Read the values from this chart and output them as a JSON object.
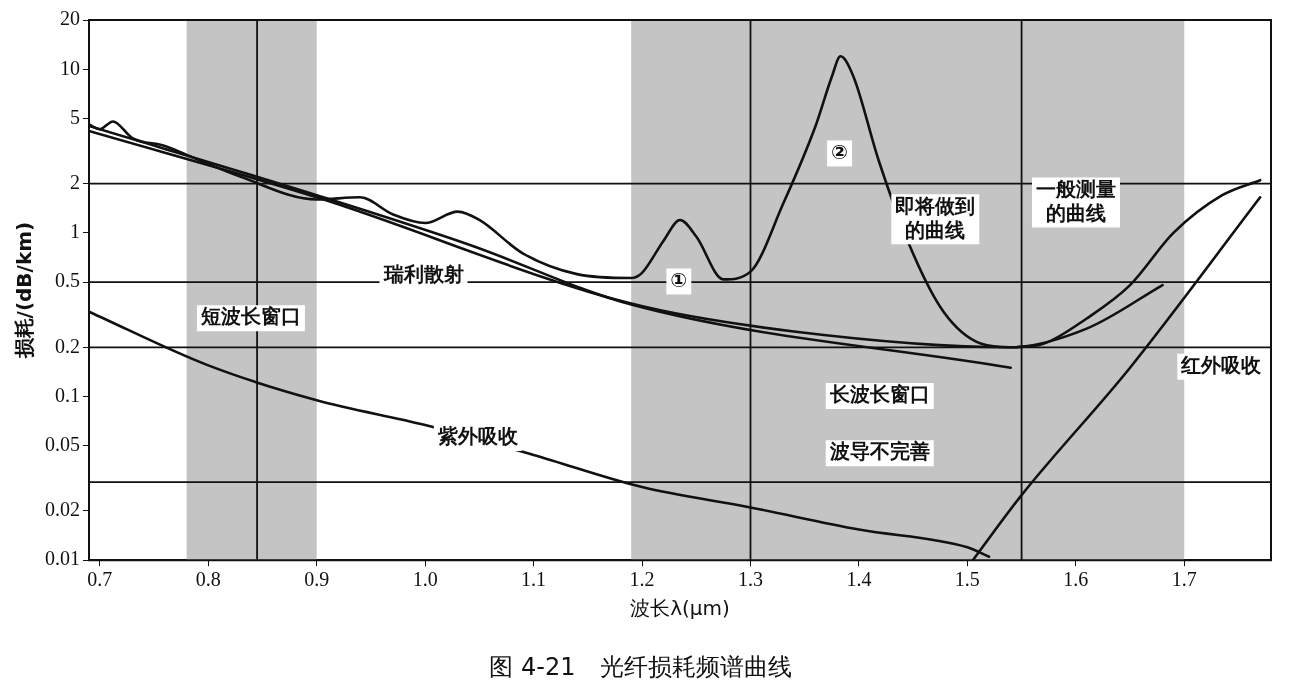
{
  "chart_data": {
    "type": "line",
    "title": "图 4-21　光纤损耗频谱曲线",
    "xlabel": "波长λ(μm)",
    "ylabel": "损耗/(dB/km)",
    "log": "y",
    "xlim": [
      0.69,
      1.78
    ],
    "ylim": [
      0.01,
      20
    ],
    "xticks": [
      0.7,
      0.8,
      0.9,
      {
        "value": 1,
        "label": "1.0"
      },
      1.1,
      1.2,
      1.3,
      1.4,
      1.5,
      1.6,
      1.7
    ],
    "yticks": [
      0.01,
      0.02,
      0.05,
      0.1,
      0.2,
      0.5,
      1,
      2,
      5,
      10,
      20
    ],
    "marker": "none",
    "line_style": "solid",
    "series": [
      {
        "color": "#111111",
        "x": [
          0.69,
          0.7,
          0.712,
          0.73,
          0.76,
          0.78,
          0.83,
          0.9,
          0.94,
          0.97,
          1.0,
          1.03,
          1.05,
          1.09,
          1.14,
          1.19,
          1.2,
          1.22,
          1.235,
          1.25,
          1.275,
          1.3,
          1.33,
          1.36,
          1.375,
          1.383,
          1.395,
          1.418,
          1.448,
          1.478,
          1.513,
          1.54,
          1.57,
          1.61,
          1.65,
          1.69,
          1.735,
          1.77
        ],
        "values": [
          4.6,
          4.3,
          4.8,
          3.8,
          3.4,
          3.0,
          2.2,
          1.6,
          1.65,
          1.3,
          1.15,
          1.35,
          1.2,
          0.75,
          0.56,
          0.53,
          0.57,
          0.9,
          1.2,
          0.95,
          0.52,
          0.58,
          1.5,
          4.5,
          9,
          12,
          9,
          2.8,
          0.8,
          0.33,
          0.21,
          0.2,
          0.21,
          0.3,
          0.48,
          1.0,
          1.7,
          2.1
        ]
      },
      {
        "color": "#111111",
        "x": [
          0.69,
          0.9,
          1.19,
          1.34,
          1.54,
          1.61,
          1.68
        ],
        "values": [
          4.2,
          1.65,
          0.37,
          0.25,
          0.2,
          0.26,
          0.48
        ]
      },
      {
        "color": "#111111",
        "x": [
          0.69,
          0.9,
          1.04,
          1.19,
          1.54
        ],
        "values": [
          4.5,
          1.7,
          0.85,
          0.365,
          0.15
        ]
      },
      {
        "color": "#111111",
        "x": [
          0.69,
          0.8,
          0.9,
          1.0,
          1.1,
          1.2,
          1.3,
          1.4,
          1.5,
          1.52
        ],
        "values": [
          0.33,
          0.155,
          0.095,
          0.067,
          0.044,
          0.028,
          0.021,
          0.0154,
          0.012,
          0.0105
        ]
      },
      {
        "color": "#111111",
        "x": [
          1.505,
          1.55,
          1.65,
          1.77
        ],
        "values": [
          0.01,
          0.025,
          0.15,
          1.65
        ]
      }
    ],
    "bands": [
      {
        "axis": "x",
        "from": 0.78,
        "to": 0.9,
        "color": "#c4c4c4"
      },
      {
        "axis": "x",
        "from": 1.19,
        "to": 1.7,
        "color": "#c4c4c4"
      }
    ],
    "ref_lines": [
      {
        "axis": "y",
        "value": 2
      },
      {
        "axis": "y",
        "value": 0.5
      },
      {
        "axis": "y",
        "value": 0.2
      },
      {
        "axis": "y",
        "value": 0.03
      },
      {
        "axis": "x",
        "value": 0.845
      },
      {
        "axis": "x",
        "value": 1.3
      },
      {
        "axis": "x",
        "value": 1.55
      }
    ],
    "annotations": [
      "瑞利散射",
      "紫外吸收",
      "红外吸收",
      "一般测量的曲线",
      "即将做到的曲线",
      "①",
      "②",
      "短波长窗口",
      "长波长窗口",
      "波导不完善"
    ]
  }
}
